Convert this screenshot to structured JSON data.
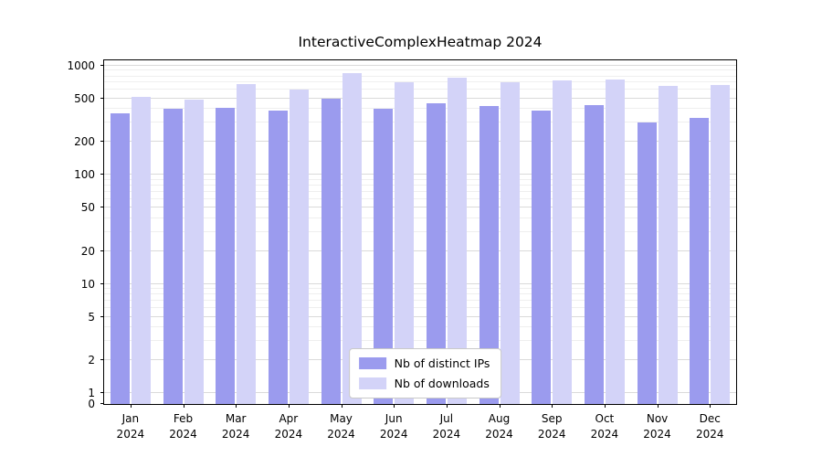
{
  "chart_data": {
    "type": "bar",
    "title": "InteractiveComplexHeatmap 2024",
    "categories": [
      "Jan",
      "Feb",
      "Mar",
      "Apr",
      "May",
      "Jun",
      "Jul",
      "Aug",
      "Sep",
      "Oct",
      "Nov",
      "Dec"
    ],
    "year_label": "2024",
    "y_ticks": [
      0,
      1,
      2,
      5,
      10,
      20,
      50,
      100,
      200,
      500,
      1000
    ],
    "y_scale": "log",
    "ylim": [
      0,
      1100
    ],
    "grid": true,
    "legend_position": "lower center",
    "series": [
      {
        "name": "Nb of distinct IPs",
        "color": "#9b9bee",
        "values": [
          370,
          400,
          410,
          390,
          500,
          400,
          450,
          430,
          390,
          440,
          300,
          330
        ]
      },
      {
        "name": "Nb of downloads",
        "color": "#d3d3f8",
        "values": [
          520,
          490,
          680,
          600,
          850,
          700,
          780,
          700,
          730,
          750,
          650,
          670
        ]
      }
    ]
  }
}
